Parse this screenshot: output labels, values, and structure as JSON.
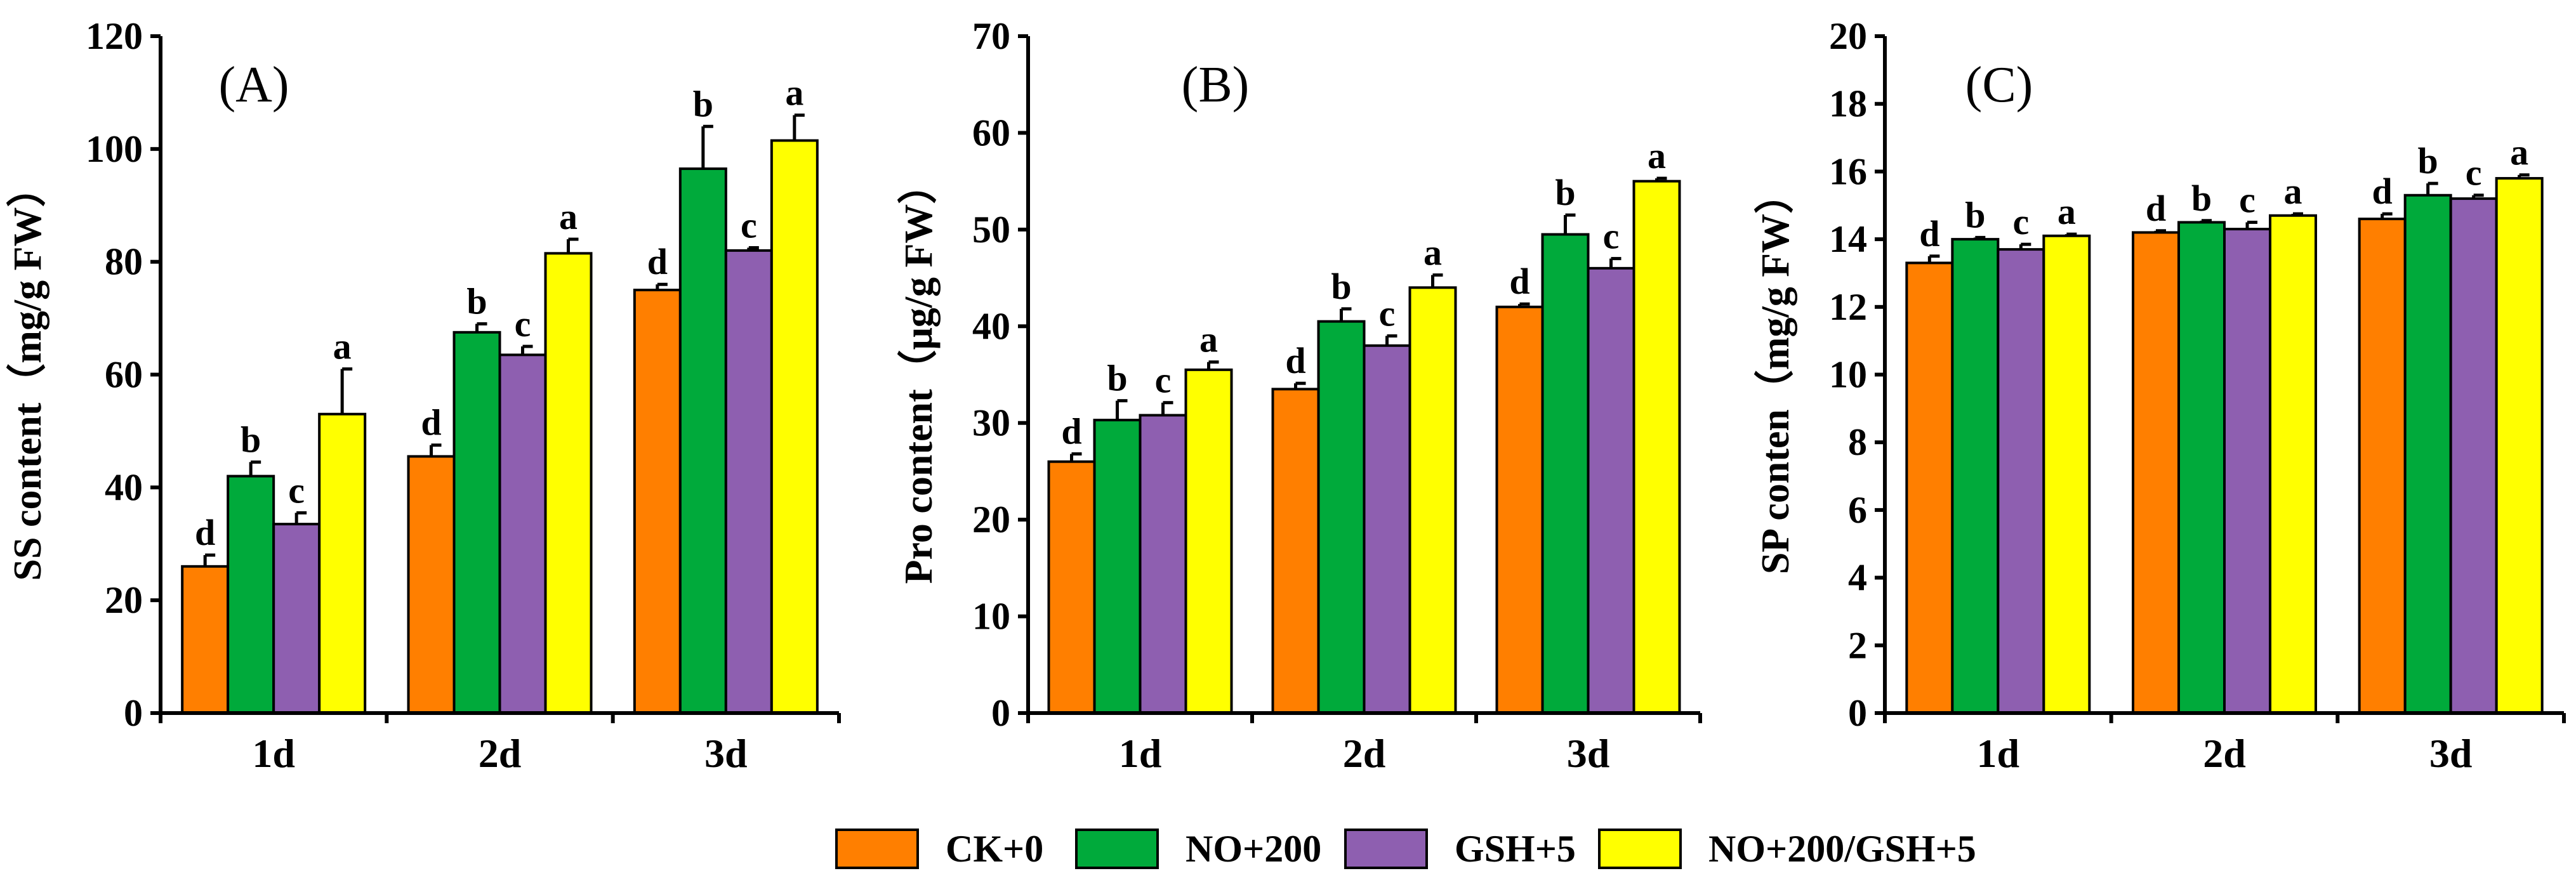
{
  "chart_data": [
    {
      "type": "bar",
      "panel_label": "(A)",
      "categories": [
        "1d",
        "2d",
        "3d"
      ],
      "ylabel": "SS content（mg/g FW）",
      "ylim": [
        0,
        120
      ],
      "yticks": [
        0,
        20,
        40,
        60,
        80,
        100,
        120
      ],
      "series": [
        {
          "name": "CK+0",
          "values": [
            26,
            45.5,
            75
          ],
          "errors": [
            2,
            2,
            1
          ],
          "letters": [
            "d",
            "d",
            "d"
          ]
        },
        {
          "name": "NO+200",
          "values": [
            42,
            67.5,
            96.5
          ],
          "errors": [
            2.5,
            1.5,
            7.5
          ],
          "letters": [
            "b",
            "b",
            "b"
          ]
        },
        {
          "name": "GSH+5",
          "values": [
            33.5,
            63.5,
            82
          ],
          "errors": [
            2,
            1.5,
            0.5
          ],
          "letters": [
            "c",
            "c",
            "c"
          ]
        },
        {
          "name": "NO+200/GSH+5",
          "values": [
            53,
            81.5,
            101.5
          ],
          "errors": [
            8,
            2.5,
            4.5
          ],
          "letters": [
            "a",
            "a",
            "a"
          ]
        }
      ]
    },
    {
      "type": "bar",
      "panel_label": "(B)",
      "categories": [
        "1d",
        "2d",
        "3d"
      ],
      "ylabel": "Pro content（μg/g FW）",
      "ylim": [
        0,
        70
      ],
      "yticks": [
        0,
        10,
        20,
        30,
        40,
        50,
        60,
        70
      ],
      "series": [
        {
          "name": "CK+0",
          "values": [
            26,
            33.5,
            42
          ],
          "errors": [
            0.8,
            0.6,
            0.3
          ],
          "letters": [
            "d",
            "d",
            "d"
          ]
        },
        {
          "name": "NO+200",
          "values": [
            30.3,
            40.5,
            49.5
          ],
          "errors": [
            2,
            1.3,
            2
          ],
          "letters": [
            "b",
            "b",
            "b"
          ]
        },
        {
          "name": "GSH+5",
          "values": [
            30.8,
            38,
            46
          ],
          "errors": [
            1.3,
            1,
            1
          ],
          "letters": [
            "c",
            "c",
            "c"
          ]
        },
        {
          "name": "NO+200/GSH+5",
          "values": [
            35.5,
            44,
            55
          ],
          "errors": [
            0.8,
            1.3,
            0.3
          ],
          "letters": [
            "a",
            "a",
            "a"
          ]
        }
      ]
    },
    {
      "type": "bar",
      "panel_label": "(C)",
      "categories": [
        "1d",
        "2d",
        "3d"
      ],
      "ylabel": "SP conten（mg/g FW）",
      "ylim": [
        0,
        20
      ],
      "yticks": [
        0,
        2,
        4,
        6,
        8,
        10,
        12,
        14,
        16,
        18,
        20
      ],
      "series": [
        {
          "name": "CK+0",
          "values": [
            13.3,
            14.2,
            14.6
          ],
          "errors": [
            0.2,
            0.05,
            0.15
          ],
          "letters": [
            "d",
            "d",
            "d"
          ]
        },
        {
          "name": "NO+200",
          "values": [
            14.0,
            14.5,
            15.3
          ],
          "errors": [
            0.05,
            0.05,
            0.35
          ],
          "letters": [
            "b",
            "b",
            "b"
          ]
        },
        {
          "name": "GSH+5",
          "values": [
            13.7,
            14.3,
            15.2
          ],
          "errors": [
            0.15,
            0.2,
            0.1
          ],
          "letters": [
            "c",
            "c",
            "c"
          ]
        },
        {
          "name": "NO+200/GSH+5",
          "values": [
            14.1,
            14.7,
            15.8
          ],
          "errors": [
            0.05,
            0.05,
            0.1
          ],
          "letters": [
            "a",
            "a",
            "a"
          ]
        }
      ]
    }
  ],
  "legend": {
    "items": [
      {
        "label": "CK+0",
        "color": "#FF7F00"
      },
      {
        "label": "NO+200",
        "color": "#00AA3B"
      },
      {
        "label": "GSH+5",
        "color": "#8E5FB0"
      },
      {
        "label": "NO+200/GSH+5",
        "color": "#FFFF00"
      }
    ]
  }
}
